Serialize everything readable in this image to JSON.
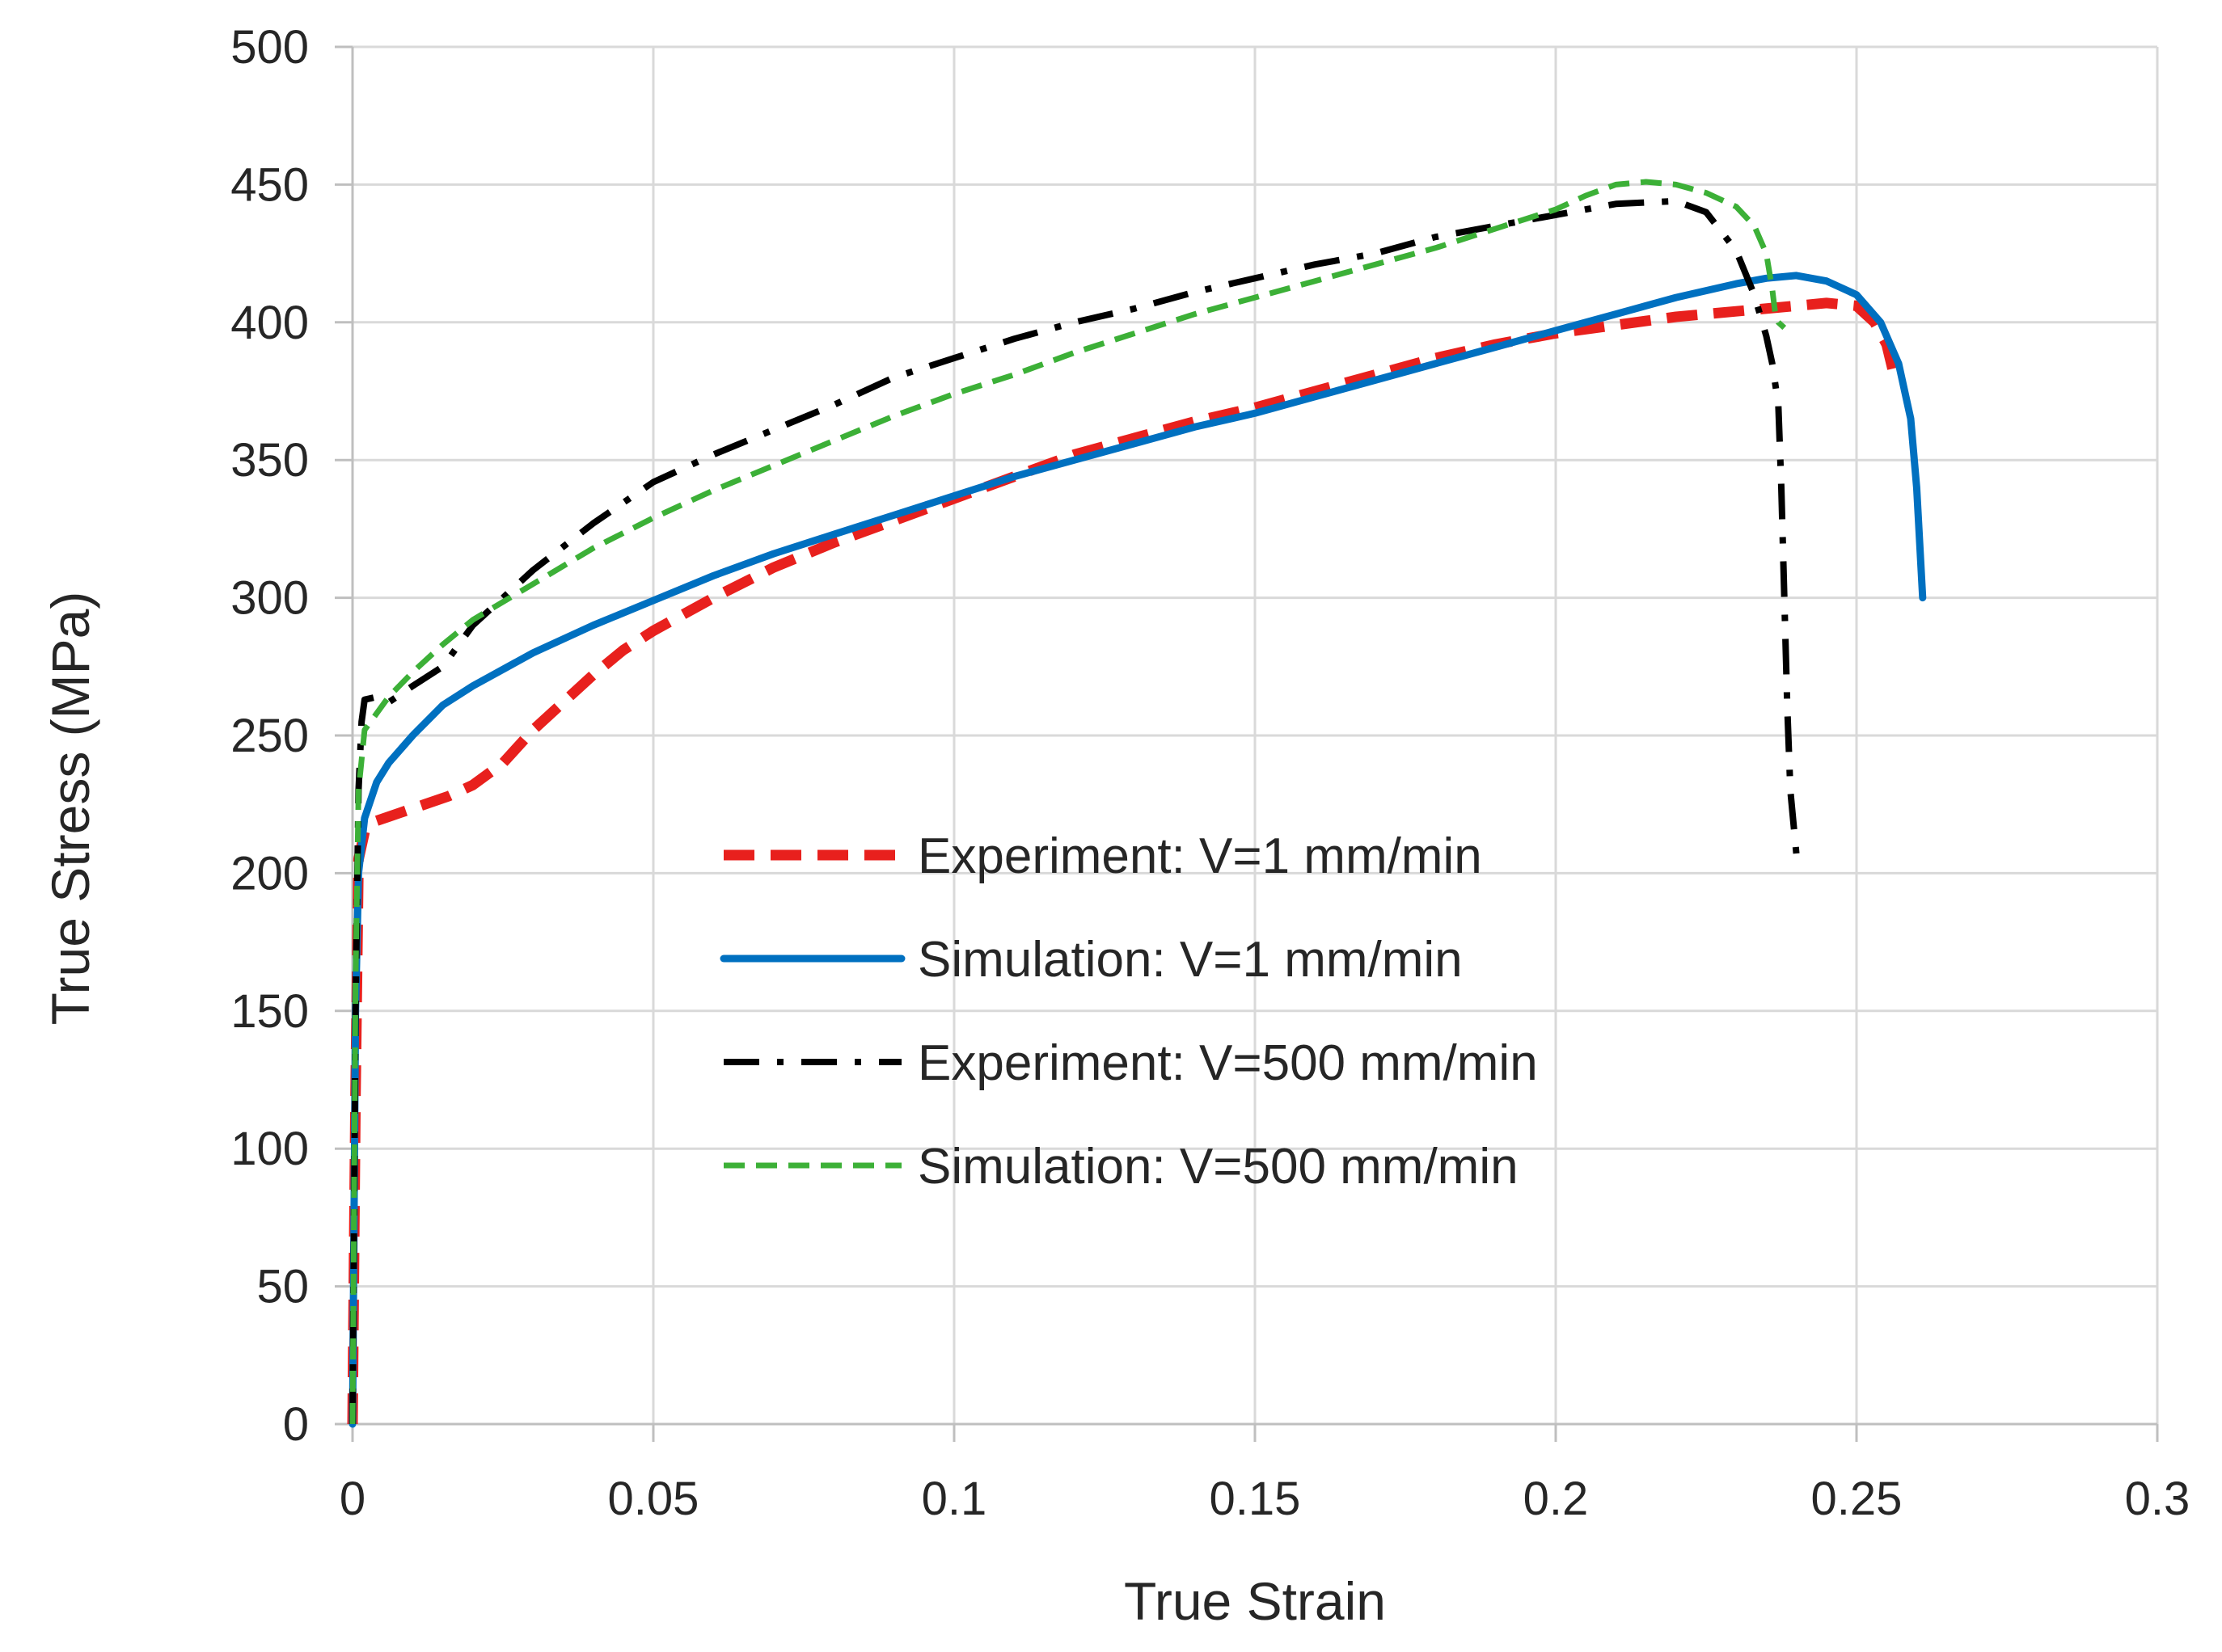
{
  "chart_data": {
    "type": "line",
    "title": "",
    "xlabel": "True Strain",
    "ylabel": "True Stress (MPa)",
    "xlim": [
      0,
      0.3
    ],
    "ylim": [
      0,
      500
    ],
    "xticks": [
      0,
      0.05,
      0.1,
      0.15,
      0.2,
      0.25,
      0.3
    ],
    "xtick_labels": [
      "0",
      "0.05",
      "0.1",
      "0.15",
      "0.2",
      "0.25",
      "0.3"
    ],
    "yticks": [
      0,
      50,
      100,
      150,
      200,
      250,
      300,
      350,
      400,
      450,
      500
    ],
    "ytick_labels": [
      "0",
      "50",
      "100",
      "150",
      "200",
      "250",
      "300",
      "350",
      "400",
      "450",
      "500"
    ],
    "grid": true,
    "legend_position": "center",
    "series": [
      {
        "name": "Experiment: V=1 mm/min",
        "color": "#e8201d",
        "style": "dashed-thick",
        "x": [
          0,
          0.0005,
          0.001,
          0.002,
          0.004,
          0.008,
          0.012,
          0.016,
          0.02,
          0.025,
          0.03,
          0.035,
          0.04,
          0.045,
          0.05,
          0.06,
          0.07,
          0.08,
          0.09,
          0.1,
          0.11,
          0.12,
          0.13,
          0.14,
          0.15,
          0.16,
          0.17,
          0.18,
          0.19,
          0.2,
          0.21,
          0.22,
          0.23,
          0.24,
          0.245,
          0.25,
          0.253,
          0.255,
          0.256
        ],
        "y": [
          0,
          120,
          205,
          215,
          219,
          222,
          225,
          228,
          232,
          240,
          252,
          262,
          272,
          281,
          288,
          300,
          311,
          320,
          328,
          336,
          344,
          352,
          358,
          364,
          369,
          375,
          381,
          387,
          392,
          396,
          399,
          402,
          404,
          406,
          407,
          406,
          400,
          392,
          383
        ]
      },
      {
        "name": "Simulation: V=1 mm/min",
        "color": "#0070c0",
        "style": "solid",
        "x": [
          0,
          0.0005,
          0.001,
          0.002,
          0.004,
          0.006,
          0.01,
          0.015,
          0.02,
          0.03,
          0.04,
          0.05,
          0.06,
          0.07,
          0.08,
          0.09,
          0.1,
          0.11,
          0.12,
          0.13,
          0.14,
          0.15,
          0.16,
          0.17,
          0.18,
          0.19,
          0.2,
          0.21,
          0.22,
          0.23,
          0.235,
          0.24,
          0.245,
          0.25,
          0.254,
          0.257,
          0.259,
          0.26,
          0.2605,
          0.261
        ],
        "y": [
          0,
          150,
          200,
          220,
          233,
          240,
          250,
          261,
          268,
          280,
          290,
          299,
          308,
          316,
          323,
          330,
          337,
          344,
          350,
          356,
          362,
          367,
          373,
          379,
          385,
          391,
          397,
          403,
          409,
          414,
          416,
          417,
          415,
          410,
          400,
          385,
          365,
          340,
          320,
          300
        ]
      },
      {
        "name": "Experiment: V=500 mm/min",
        "color": "#000000",
        "style": "dash-dot",
        "x": [
          0,
          0.0005,
          0.001,
          0.0015,
          0.002,
          0.004,
          0.006,
          0.008,
          0.01,
          0.015,
          0.02,
          0.03,
          0.04,
          0.05,
          0.06,
          0.07,
          0.08,
          0.09,
          0.1,
          0.11,
          0.12,
          0.13,
          0.14,
          0.15,
          0.16,
          0.17,
          0.18,
          0.19,
          0.2,
          0.21,
          0.22,
          0.225,
          0.23,
          0.233,
          0.235,
          0.236,
          0.237,
          0.2375,
          0.238,
          0.2385,
          0.239,
          0.24
        ],
        "y": [
          0,
          150,
          230,
          255,
          263,
          264,
          262,
          265,
          268,
          275,
          290,
          310,
          327,
          342,
          352,
          361,
          370,
          380,
          387,
          394,
          400,
          405,
          411,
          416,
          421,
          425,
          431,
          435,
          439,
          443,
          444,
          440,
          426,
          410,
          395,
          385,
          370,
          340,
          300,
          260,
          230,
          207
        ]
      },
      {
        "name": "Simulation: V=500 mm/min",
        "color": "#3cb037",
        "style": "dashed",
        "x": [
          0,
          0.0005,
          0.001,
          0.002,
          0.004,
          0.006,
          0.01,
          0.015,
          0.02,
          0.03,
          0.04,
          0.05,
          0.06,
          0.07,
          0.08,
          0.09,
          0.1,
          0.11,
          0.12,
          0.13,
          0.14,
          0.15,
          0.16,
          0.17,
          0.18,
          0.19,
          0.2,
          0.205,
          0.21,
          0.215,
          0.22,
          0.225,
          0.23,
          0.233,
          0.235,
          0.236,
          0.2365,
          0.237,
          0.238
        ],
        "y": [
          0,
          160,
          230,
          252,
          258,
          264,
          273,
          283,
          292,
          305,
          318,
          329,
          339,
          348,
          357,
          366,
          374,
          381,
          389,
          396,
          403,
          409,
          415,
          421,
          427,
          434,
          441,
          446,
          450,
          451,
          450,
          447,
          442,
          435,
          425,
          412,
          403,
          400,
          398
        ]
      }
    ]
  }
}
